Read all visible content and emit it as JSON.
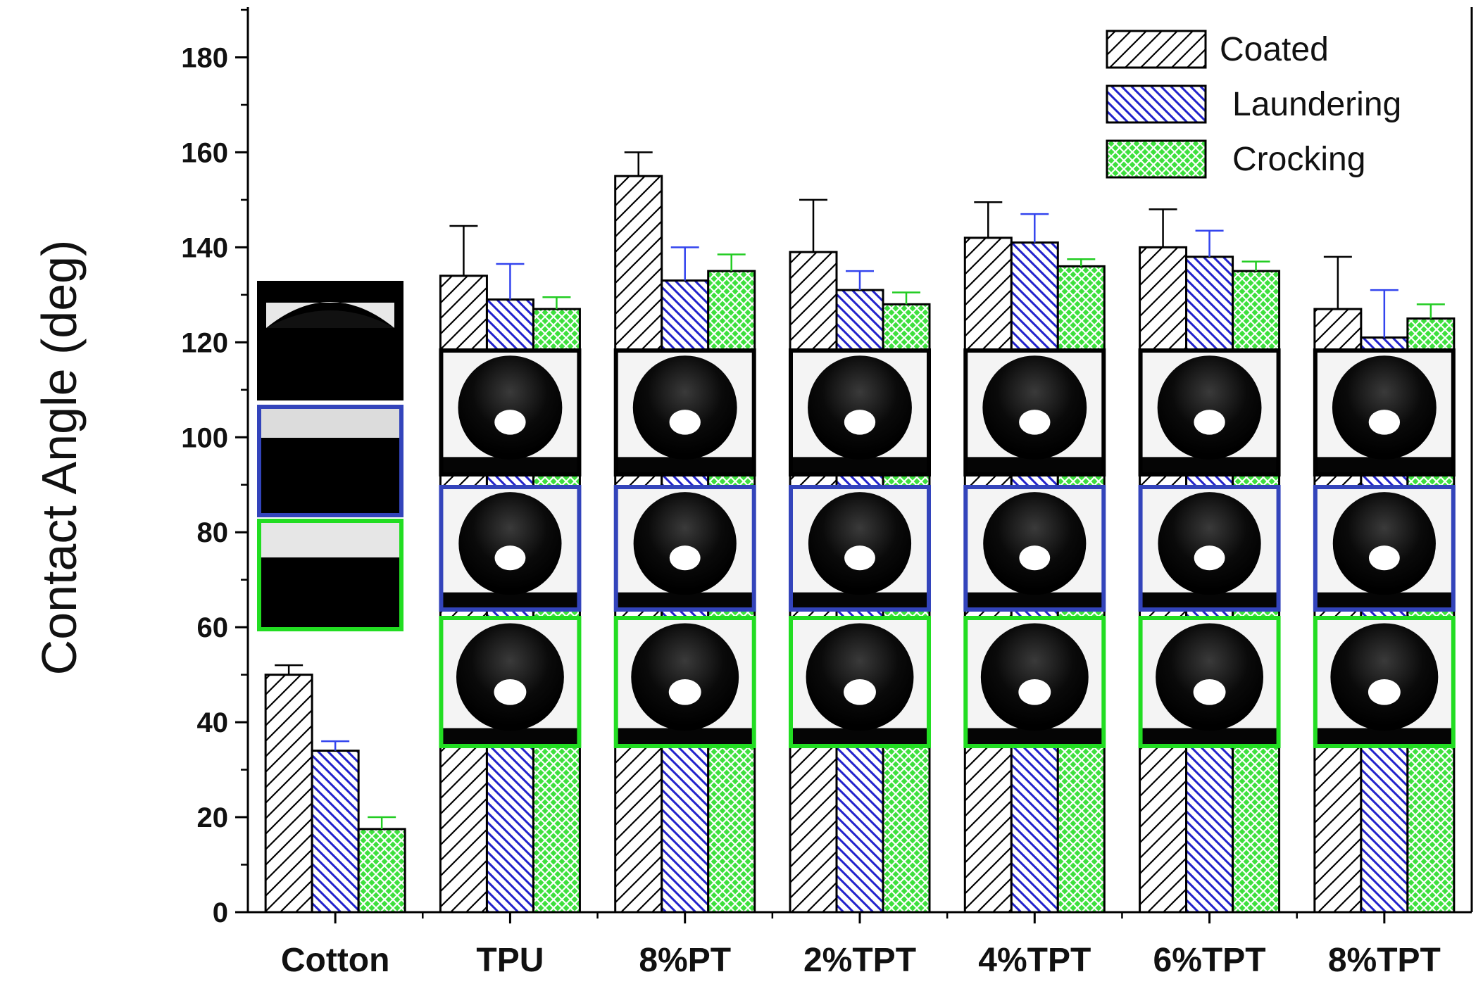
{
  "chart_data": {
    "type": "bar",
    "title": "",
    "xlabel": "",
    "ylabel": "Contact Angle (deg)",
    "ylim": [
      0,
      190
    ],
    "yticks": [
      0,
      20,
      40,
      60,
      80,
      100,
      120,
      140,
      160,
      180
    ],
    "categories": [
      "Cotton",
      "TPU",
      "8%PT",
      "2%TPT",
      "4%TPT",
      "6%TPT",
      "8%TPT"
    ],
    "series": [
      {
        "name": "Coated",
        "pattern": "diagonal-black",
        "color": "#000000",
        "values": [
          50,
          134,
          155,
          139,
          142,
          140,
          127
        ],
        "errors": [
          2,
          10.5,
          5,
          11,
          7.5,
          8,
          11
        ]
      },
      {
        "name": "Laundering",
        "pattern": "diagonal-blue",
        "color": "#2222cc",
        "values": [
          34,
          129,
          133,
          131,
          141,
          138,
          121
        ],
        "errors": [
          2,
          7.5,
          7,
          4,
          6,
          5.5,
          10
        ]
      },
      {
        "name": "Crocking",
        "pattern": "crosshatch-green",
        "color": "#22cc22",
        "values": [
          17.5,
          127,
          135,
          128,
          136,
          135,
          125
        ],
        "errors": [
          2.5,
          2.5,
          3.5,
          2.5,
          1.5,
          2,
          3
        ]
      }
    ],
    "legend": "top-right",
    "grid": false,
    "insets": {
      "description": "droplet photographs per sample",
      "frame_colors": {
        "coated": "#000000",
        "laundering": "#3344bb",
        "crocking": "#22dd22"
      }
    }
  }
}
